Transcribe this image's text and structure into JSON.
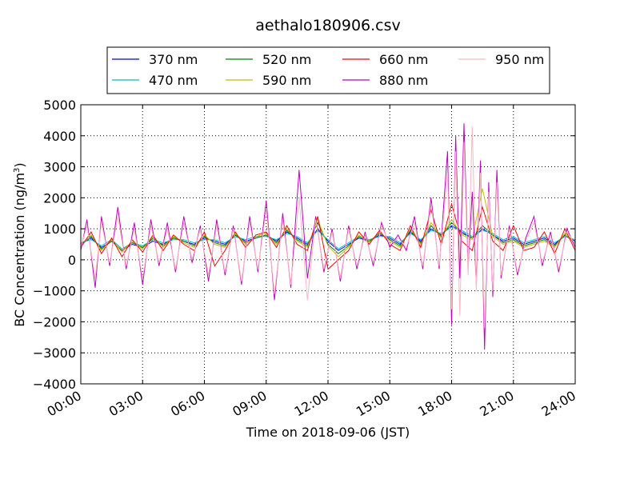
{
  "chart_data": {
    "type": "line",
    "title": "aethalo180906.csv",
    "xlabel": "Time on 2018-09-06 (JST)",
    "ylabel": "BC Concentration (ng/m³)",
    "ylabel_main": "BC Concentration (ng/m",
    "ylabel_sup": "3",
    "ylabel_close": ")",
    "xlim_hours": [
      0,
      24
    ],
    "ylim": [
      -4000,
      5000
    ],
    "x_ticks": [
      {
        "hour": 0,
        "label": "00:00"
      },
      {
        "hour": 3,
        "label": "03:00"
      },
      {
        "hour": 6,
        "label": "06:00"
      },
      {
        "hour": 9,
        "label": "09:00"
      },
      {
        "hour": 12,
        "label": "12:00"
      },
      {
        "hour": 15,
        "label": "15:00"
      },
      {
        "hour": 18,
        "label": "18:00"
      },
      {
        "hour": 21,
        "label": "21:00"
      },
      {
        "hour": 24,
        "label": "24:00"
      }
    ],
    "y_ticks": [
      {
        "value": 5000,
        "label": "5000"
      },
      {
        "value": 4000,
        "label": "4000"
      },
      {
        "value": 3000,
        "label": "3000"
      },
      {
        "value": 2000,
        "label": "2000"
      },
      {
        "value": 1000,
        "label": "1000"
      },
      {
        "value": 0,
        "label": "0"
      },
      {
        "value": -1000,
        "label": "−1000"
      },
      {
        "value": -2000,
        "label": "−2000"
      },
      {
        "value": -3000,
        "label": "−3000"
      },
      {
        "value": -4000,
        "label": "−4000"
      }
    ],
    "grid": true,
    "legend_position": "top",
    "series": [
      {
        "name": "370 nm",
        "color": "#0000ff",
        "x_hours": [
          0,
          0.5,
          1,
          1.5,
          2,
          2.5,
          3,
          3.5,
          4,
          4.5,
          5,
          5.5,
          6,
          6.5,
          7,
          7.5,
          8,
          8.5,
          9,
          9.5,
          10,
          10.5,
          11,
          11.5,
          12,
          12.5,
          13,
          13.5,
          14,
          14.5,
          15,
          15.5,
          16,
          16.5,
          17,
          17.5,
          18,
          18.5,
          19,
          19.5,
          20,
          20.5,
          21,
          21.5,
          22,
          22.5,
          23,
          23.5,
          24
        ],
        "values": [
          500,
          700,
          400,
          600,
          300,
          500,
          400,
          600,
          500,
          700,
          600,
          500,
          700,
          600,
          500,
          800,
          600,
          700,
          800,
          600,
          900,
          700,
          500,
          1000,
          600,
          300,
          500,
          700,
          600,
          800,
          700,
          500,
          900,
          600,
          1000,
          800,
          1100,
          900,
          700,
          1000,
          800,
          600,
          700,
          500,
          600,
          700,
          500,
          800,
          600
        ]
      },
      {
        "name": "470 nm",
        "color": "#00bfbf",
        "x_hours": [
          0,
          0.5,
          1,
          1.5,
          2,
          2.5,
          3,
          3.5,
          4,
          4.5,
          5,
          5.5,
          6,
          6.5,
          7,
          7.5,
          8,
          8.5,
          9,
          9.5,
          10,
          10.5,
          11,
          11.5,
          12,
          12.5,
          13,
          13.5,
          14,
          14.5,
          15,
          15.5,
          16,
          16.5,
          17,
          17.5,
          18,
          18.5,
          19,
          19.5,
          20,
          20.5,
          21,
          21.5,
          22,
          22.5,
          23,
          23.5,
          24
        ],
        "values": [
          550,
          650,
          450,
          650,
          350,
          550,
          450,
          650,
          550,
          650,
          650,
          550,
          650,
          650,
          550,
          750,
          650,
          750,
          750,
          650,
          850,
          750,
          550,
          950,
          650,
          350,
          550,
          750,
          650,
          750,
          750,
          550,
          850,
          650,
          950,
          850,
          1050,
          950,
          750,
          950,
          850,
          650,
          750,
          550,
          650,
          750,
          550,
          750,
          650
        ]
      },
      {
        "name": "520 nm",
        "color": "#008000",
        "x_hours": [
          0,
          0.5,
          1,
          1.5,
          2,
          2.5,
          3,
          3.5,
          4,
          4.5,
          5,
          5.5,
          6,
          6.5,
          7,
          7.5,
          8,
          8.5,
          9,
          9.5,
          10,
          10.5,
          11,
          11.5,
          12,
          12.5,
          13,
          13.5,
          14,
          14.5,
          15,
          15.5,
          16,
          16.5,
          17,
          17.5,
          18,
          18.5,
          19,
          19.5,
          20,
          20.5,
          21,
          21.5,
          22,
          22.5,
          23,
          23.5,
          24
        ],
        "values": [
          500,
          750,
          350,
          600,
          300,
          550,
          400,
          700,
          450,
          700,
          600,
          450,
          750,
          550,
          450,
          800,
          550,
          700,
          800,
          550,
          950,
          650,
          450,
          1200,
          500,
          200,
          450,
          750,
          600,
          850,
          650,
          450,
          950,
          550,
          1100,
          750,
          1200,
          850,
          700,
          1100,
          800,
          550,
          650,
          450,
          550,
          650,
          450,
          800,
          550
        ]
      },
      {
        "name": "590 nm",
        "color": "#bfbf00",
        "x_hours": [
          0,
          0.5,
          1,
          1.5,
          2,
          2.5,
          3,
          3.5,
          4,
          4.5,
          5,
          5.5,
          6,
          6.5,
          7,
          7.5,
          8,
          8.5,
          9,
          9.5,
          10,
          10.5,
          11,
          11.5,
          12,
          12.5,
          13,
          13.5,
          14,
          14.5,
          15,
          15.5,
          16,
          16.5,
          17,
          17.5,
          18,
          18.5,
          19,
          19.5,
          20,
          20.5,
          21,
          21.5,
          22,
          22.5,
          23,
          23.5,
          24
        ],
        "values": [
          450,
          800,
          300,
          650,
          250,
          600,
          350,
          750,
          400,
          750,
          550,
          400,
          800,
          500,
          400,
          850,
          500,
          750,
          850,
          500,
          1000,
          600,
          400,
          1300,
          450,
          100,
          400,
          800,
          550,
          900,
          600,
          400,
          1000,
          500,
          1200,
          700,
          1300,
          800,
          650,
          2300,
          750,
          500,
          600,
          400,
          500,
          600,
          400,
          850,
          500
        ]
      },
      {
        "name": "660 nm",
        "color": "#ff0000",
        "x_hours": [
          0,
          0.5,
          1,
          1.5,
          2,
          2.5,
          3,
          3.5,
          4,
          4.5,
          5,
          5.5,
          6,
          6.5,
          7,
          7.5,
          8,
          8.5,
          9,
          9.5,
          10,
          10.5,
          11,
          11.5,
          12,
          12.5,
          13,
          13.5,
          14,
          14.5,
          15,
          15.5,
          16,
          16.5,
          17,
          17.5,
          18,
          18.5,
          19,
          19.5,
          20,
          20.5,
          21,
          21.5,
          22,
          22.5,
          23,
          23.5,
          24
        ],
        "values": [
          400,
          900,
          200,
          700,
          100,
          650,
          250,
          800,
          300,
          800,
          500,
          300,
          900,
          -200,
          300,
          900,
          400,
          800,
          900,
          400,
          1100,
          500,
          300,
          1400,
          -300,
          0,
          300,
          900,
          500,
          950,
          500,
          300,
          1100,
          400,
          1600,
          500,
          1800,
          600,
          300,
          1700,
          600,
          300,
          1100,
          300,
          400,
          900,
          200,
          1000,
          300
        ]
      },
      {
        "name": "880 nm",
        "color": "#bf00bf",
        "x_hours": [
          0,
          0.3,
          0.7,
          1,
          1.4,
          1.8,
          2.2,
          2.6,
          3,
          3.4,
          3.8,
          4.2,
          4.6,
          5,
          5.4,
          5.8,
          6.2,
          6.6,
          7,
          7.4,
          7.8,
          8.2,
          8.6,
          9,
          9.4,
          9.8,
          10.2,
          10.6,
          11,
          11.4,
          11.8,
          12.2,
          12.6,
          13,
          13.4,
          13.8,
          14.2,
          14.6,
          15,
          15.4,
          15.8,
          16.2,
          16.6,
          17,
          17.4,
          17.8,
          18,
          18.2,
          18.4,
          18.6,
          18.8,
          19,
          19.2,
          19.4,
          19.6,
          19.8,
          20,
          20.2,
          20.4,
          20.8,
          21.2,
          21.6,
          22,
          22.4,
          22.8,
          23.2,
          23.6,
          24
        ],
        "values": [
          300,
          1300,
          -900,
          1400,
          -200,
          1700,
          -300,
          1200,
          -800,
          1300,
          -200,
          1200,
          -400,
          1400,
          -100,
          1100,
          -700,
          1300,
          -500,
          1100,
          -800,
          1400,
          -400,
          1900,
          -1300,
          1500,
          -900,
          2900,
          -600,
          1400,
          -400,
          1000,
          -700,
          1100,
          -300,
          900,
          -200,
          1200,
          400,
          800,
          300,
          1400,
          -300,
          2000,
          -300,
          3500,
          -2100,
          4000,
          -600,
          4400,
          -300,
          2200,
          -800,
          3200,
          -2900,
          2500,
          -1200,
          2900,
          -600,
          1100,
          -500,
          700,
          1400,
          -200,
          900,
          -400,
          1000,
          400
        ]
      },
      {
        "name": "950 nm",
        "color": "#ffb6c1",
        "x_hours": [
          0,
          0.3,
          0.7,
          1,
          1.4,
          1.8,
          2.2,
          2.6,
          3,
          3.4,
          3.8,
          4.2,
          4.6,
          5,
          5.4,
          5.8,
          6.2,
          6.6,
          7,
          7.4,
          7.8,
          8.2,
          8.6,
          9,
          9.4,
          9.8,
          10.2,
          10.6,
          11,
          11.4,
          11.8,
          12.2,
          12.6,
          13,
          13.4,
          13.8,
          14.2,
          14.6,
          15,
          15.4,
          15.8,
          16.2,
          16.6,
          17,
          17.4,
          17.8,
          18,
          18.2,
          18.4,
          18.6,
          18.8,
          19,
          19.2,
          19.4,
          19.6,
          19.8,
          20,
          20.2,
          20.4,
          20.8,
          21.2,
          21.6,
          22,
          22.4,
          22.8,
          23.2,
          23.6,
          24
        ],
        "values": [
          400,
          1100,
          -600,
          1200,
          -100,
          1400,
          -200,
          1000,
          -600,
          1100,
          -100,
          1000,
          -300,
          1200,
          0,
          1000,
          -500,
          1100,
          -400,
          1000,
          -700,
          1200,
          -300,
          1600,
          -1100,
          1300,
          -800,
          2000,
          -1300,
          1300,
          -300,
          900,
          -600,
          1000,
          -200,
          800,
          -100,
          1100,
          500,
          700,
          400,
          1200,
          -200,
          1800,
          -200,
          2800,
          -1600,
          3500,
          -1800,
          3800,
          -500,
          4300,
          -1000,
          2800,
          -2200,
          2200,
          -1000,
          2500,
          -500,
          1000,
          -400,
          600,
          1200,
          -100,
          800,
          -300,
          900,
          500
        ]
      }
    ]
  }
}
